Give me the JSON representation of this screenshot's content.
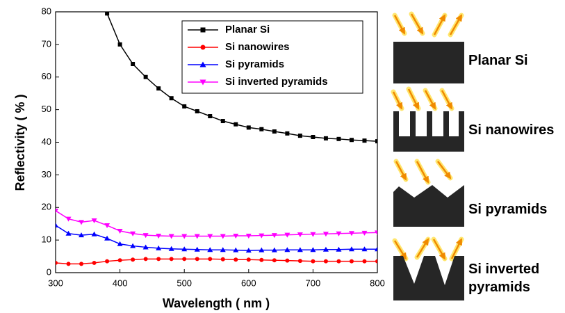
{
  "chart_data": {
    "type": "line",
    "xlabel": "Wavelength ( nm )",
    "ylabel": "Reflectivity ( % )",
    "x": [
      300,
      320,
      340,
      360,
      380,
      400,
      420,
      440,
      460,
      480,
      500,
      520,
      540,
      560,
      580,
      600,
      620,
      640,
      660,
      680,
      700,
      720,
      740,
      760,
      780,
      800
    ],
    "series": [
      {
        "name": "Planar Si",
        "color": "#000000",
        "marker": "square",
        "values": [
          null,
          null,
          null,
          null,
          79.5,
          70,
          64,
          60,
          56.5,
          53.5,
          51,
          49.5,
          48,
          46.5,
          45.5,
          44.5,
          44,
          43.3,
          42.7,
          42,
          41.6,
          41.2,
          41,
          40.7,
          40.5,
          40.3
        ]
      },
      {
        "name": "Si nanowires",
        "color": "#ff0000",
        "marker": "circle",
        "values": [
          3,
          2.7,
          2.7,
          3,
          3.5,
          3.8,
          4,
          4.2,
          4.2,
          4.2,
          4.2,
          4.2,
          4.2,
          4.1,
          4,
          4,
          3.9,
          3.8,
          3.7,
          3.6,
          3.5,
          3.5,
          3.5,
          3.5,
          3.5,
          3.5
        ]
      },
      {
        "name": "Si pyramids",
        "color": "#0000ff",
        "marker": "triangle-up",
        "values": [
          14.5,
          12,
          11.5,
          11.8,
          10.5,
          8.8,
          8.2,
          7.8,
          7.5,
          7.3,
          7.2,
          7.1,
          7,
          7,
          6.9,
          6.8,
          6.9,
          6.9,
          7,
          7,
          7,
          7.1,
          7.1,
          7.2,
          7.2,
          7.2
        ]
      },
      {
        "name": "Si inverted pyramids",
        "color": "#ff00ff",
        "marker": "triangle-down",
        "values": [
          19,
          16.5,
          15.5,
          16,
          14.5,
          12.8,
          12,
          11.5,
          11.3,
          11.2,
          11.2,
          11.2,
          11.2,
          11.2,
          11.3,
          11.3,
          11.4,
          11.5,
          11.6,
          11.7,
          11.8,
          11.9,
          12,
          12.1,
          12.2,
          12.3
        ]
      }
    ],
    "xlim": [
      300,
      800
    ],
    "xticks": [
      300,
      400,
      500,
      600,
      700,
      800
    ],
    "ylim": [
      0,
      80
    ],
    "yticks": [
      0,
      10,
      20,
      30,
      40,
      50,
      60,
      70,
      80
    ],
    "grid": false,
    "legend": "top"
  },
  "diagram": {
    "labels": [
      "Planar Si",
      "Si nanowires",
      "Si pyramids",
      "Si inverted pyramids"
    ]
  }
}
